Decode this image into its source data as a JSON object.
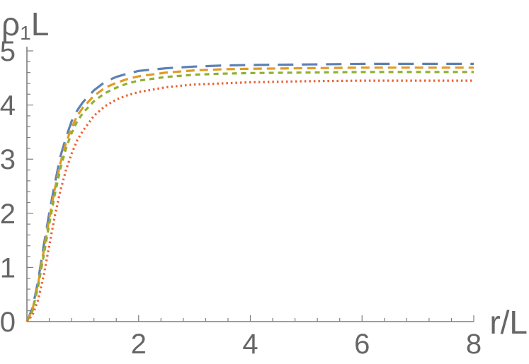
{
  "chart_data": {
    "type": "line",
    "xlabel": "r/L",
    "ylabel": {
      "main": "ρ",
      "sub": "1",
      "tail": "L"
    },
    "xlim": [
      0,
      8
    ],
    "ylim": [
      0,
      5
    ],
    "x_ticks": [
      2,
      4,
      6,
      8
    ],
    "y_ticks": [
      0,
      1,
      2,
      3,
      4,
      5
    ],
    "grid": false,
    "legend": "none",
    "series": [
      {
        "color": "#5e81b5",
        "style": "long-dash",
        "x": [
          0,
          0.1,
          0.2,
          0.3,
          0.4,
          0.5,
          0.6,
          0.7,
          0.8,
          0.9,
          1.0,
          1.2,
          1.4,
          1.6,
          1.8,
          2.0,
          2.5,
          3.0,
          3.5,
          4.0,
          5.0,
          6.0,
          7.0,
          8.0
        ],
        "y": [
          0,
          0.25,
          0.75,
          1.4,
          2.0,
          2.55,
          3.05,
          3.4,
          3.7,
          3.9,
          4.05,
          4.27,
          4.43,
          4.52,
          4.58,
          4.63,
          4.68,
          4.71,
          4.73,
          4.74,
          4.75,
          4.76,
          4.76,
          4.76
        ]
      },
      {
        "color": "#e19c24",
        "style": "dash",
        "x": [
          0,
          0.1,
          0.2,
          0.3,
          0.4,
          0.5,
          0.6,
          0.7,
          0.8,
          0.9,
          1.0,
          1.2,
          1.4,
          1.6,
          1.8,
          2.0,
          2.5,
          3.0,
          3.5,
          4.0,
          5.0,
          6.0,
          7.0,
          8.0
        ],
        "y": [
          0,
          0.22,
          0.7,
          1.3,
          1.9,
          2.45,
          2.93,
          3.3,
          3.58,
          3.8,
          3.95,
          4.17,
          4.32,
          4.41,
          4.48,
          4.53,
          4.6,
          4.64,
          4.66,
          4.67,
          4.68,
          4.69,
          4.69,
          4.69
        ]
      },
      {
        "color": "#8fb032",
        "style": "short-dash",
        "x": [
          0,
          0.1,
          0.2,
          0.3,
          0.4,
          0.5,
          0.6,
          0.7,
          0.8,
          0.9,
          1.0,
          1.2,
          1.4,
          1.6,
          1.8,
          2.0,
          2.5,
          3.0,
          3.5,
          4.0,
          5.0,
          6.0,
          7.0,
          8.0
        ],
        "y": [
          0,
          0.2,
          0.65,
          1.22,
          1.8,
          2.35,
          2.83,
          3.2,
          3.48,
          3.7,
          3.85,
          4.07,
          4.22,
          4.32,
          4.4,
          4.45,
          4.52,
          4.56,
          4.58,
          4.59,
          4.6,
          4.61,
          4.61,
          4.61
        ]
      },
      {
        "color": "#eb6235",
        "style": "dotted",
        "x": [
          0,
          0.1,
          0.2,
          0.3,
          0.4,
          0.5,
          0.6,
          0.7,
          0.8,
          0.9,
          1.0,
          1.2,
          1.4,
          1.6,
          1.8,
          2.0,
          2.5,
          3.0,
          3.5,
          4.0,
          5.0,
          6.0,
          7.0,
          8.0
        ],
        "y": [
          0,
          0.12,
          0.4,
          0.85,
          1.4,
          1.95,
          2.42,
          2.8,
          3.1,
          3.35,
          3.52,
          3.8,
          3.98,
          4.1,
          4.18,
          4.24,
          4.33,
          4.38,
          4.4,
          4.42,
          4.44,
          4.45,
          4.45,
          4.45
        ]
      }
    ]
  }
}
